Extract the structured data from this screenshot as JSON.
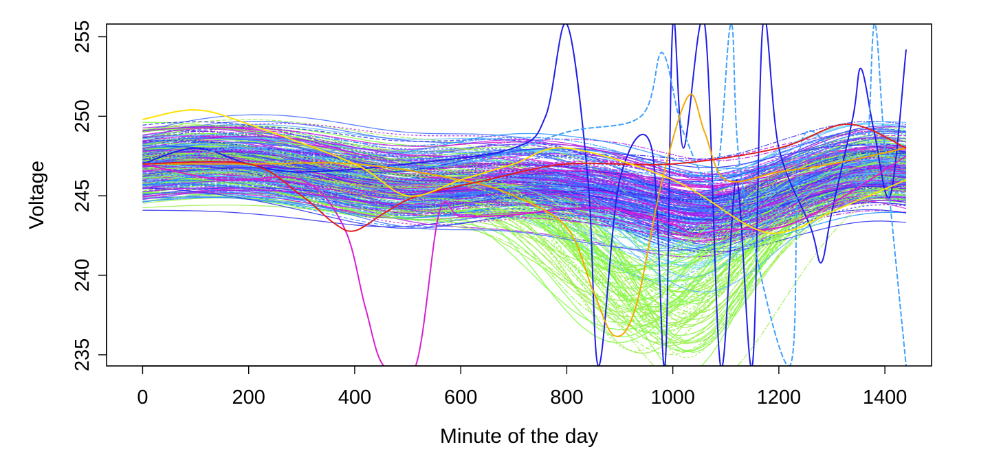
{
  "chart_data": {
    "type": "line",
    "title": "",
    "xlabel": "Minute of the day",
    "ylabel": "Voltage",
    "xlim": [
      -68,
      1488
    ],
    "ylim": [
      234.3,
      255.8
    ],
    "xticks": [
      0,
      200,
      400,
      600,
      800,
      1000,
      1200,
      1400
    ],
    "yticks": [
      235,
      240,
      245,
      250,
      255
    ],
    "grid": false,
    "legend": "none",
    "bundle": {
      "description_note": "",
      "count": 320,
      "x_range": [
        0,
        1440
      ],
      "palette": [
        "#7CFC3C",
        "#9BEF4A",
        "#6FE0F0",
        "#5BB8FF",
        "#3F6BFF",
        "#2D2DF0",
        "#B01CE8",
        "#D61FD0",
        "#1E90FF",
        "#FFD21E",
        "#E01E1E"
      ]
    },
    "series": [
      {
        "color": "#1E1EE8",
        "values": [
          [
            0,
            247
          ],
          [
            100,
            248
          ],
          [
            200,
            247
          ],
          [
            300,
            246.5
          ],
          [
            500,
            247
          ],
          [
            700,
            248
          ],
          [
            760,
            250
          ],
          [
            800,
            255.8
          ],
          [
            840,
            246
          ],
          [
            860,
            234.3
          ],
          [
            900,
            246
          ],
          [
            960,
            248
          ],
          [
            985,
            234.3
          ],
          [
            1000,
            255.8
          ],
          [
            1020,
            248
          ],
          [
            1060,
            255.8
          ],
          [
            1090,
            234.3
          ],
          [
            1120,
            246
          ],
          [
            1150,
            234.3
          ],
          [
            1170,
            255.8
          ],
          [
            1200,
            248
          ],
          [
            1260,
            243
          ],
          [
            1280,
            240.8
          ],
          [
            1300,
            244
          ],
          [
            1340,
            250
          ],
          [
            1355,
            253
          ],
          [
            1380,
            249
          ],
          [
            1410,
            245
          ],
          [
            1440,
            254.2
          ]
        ]
      },
      {
        "color": "#3FA0FF",
        "values": [
          [
            0,
            247
          ],
          [
            200,
            248
          ],
          [
            400,
            247
          ],
          [
            600,
            247
          ],
          [
            800,
            249
          ],
          [
            940,
            250
          ],
          [
            980,
            254
          ],
          [
            1020,
            249
          ],
          [
            1080,
            246
          ],
          [
            1110,
            255.8
          ],
          [
            1130,
            246
          ],
          [
            1220,
            234.3
          ],
          [
            1240,
            248
          ],
          [
            1300,
            248
          ],
          [
            1360,
            246
          ],
          [
            1380,
            255.8
          ],
          [
            1400,
            248
          ],
          [
            1440,
            234.3
          ]
        ]
      },
      {
        "color": "#D61FD0",
        "values": [
          [
            0,
            247
          ],
          [
            150,
            246
          ],
          [
            300,
            246
          ],
          [
            380,
            243
          ],
          [
            420,
            238
          ],
          [
            455,
            234.3
          ],
          [
            515,
            234.3
          ],
          [
            560,
            244
          ],
          [
            600,
            243.7
          ],
          [
            700,
            243.8
          ],
          [
            800,
            244.2
          ],
          [
            900,
            244.1
          ],
          [
            1000,
            243.2
          ],
          [
            1040,
            242.6
          ],
          [
            1100,
            242.9
          ],
          [
            1200,
            243
          ],
          [
            1300,
            244.5
          ],
          [
            1440,
            247.5
          ]
        ]
      },
      {
        "color": "#F2A900",
        "values": [
          [
            0,
            247
          ],
          [
            200,
            247
          ],
          [
            400,
            247
          ],
          [
            600,
            246
          ],
          [
            700,
            245
          ],
          [
            800,
            243
          ],
          [
            850,
            239
          ],
          [
            890,
            236.2
          ],
          [
            930,
            238
          ],
          [
            980,
            246
          ],
          [
            1030,
            251.3
          ],
          [
            1060,
            249
          ],
          [
            1100,
            246
          ],
          [
            1200,
            246.5
          ],
          [
            1300,
            247
          ],
          [
            1440,
            248
          ]
        ]
      },
      {
        "color": "#E01E1E",
        "values": [
          [
            0,
            247
          ],
          [
            200,
            247
          ],
          [
            300,
            245
          ],
          [
            360,
            243.3
          ],
          [
            400,
            242.8
          ],
          [
            460,
            244
          ],
          [
            520,
            245
          ],
          [
            650,
            246
          ],
          [
            800,
            247
          ],
          [
            1000,
            247
          ],
          [
            1200,
            248
          ],
          [
            1330,
            249.5
          ],
          [
            1440,
            248
          ]
        ]
      },
      {
        "color": "#FFE100",
        "values": [
          [
            0,
            249.8
          ],
          [
            100,
            250.4
          ],
          [
            200,
            249.5
          ],
          [
            400,
            247
          ],
          [
            500,
            245
          ],
          [
            600,
            246
          ],
          [
            700,
            247
          ],
          [
            800,
            248
          ],
          [
            1000,
            246
          ],
          [
            1150,
            243
          ],
          [
            1220,
            242.8
          ],
          [
            1300,
            244
          ],
          [
            1440,
            246
          ]
        ]
      }
    ]
  }
}
